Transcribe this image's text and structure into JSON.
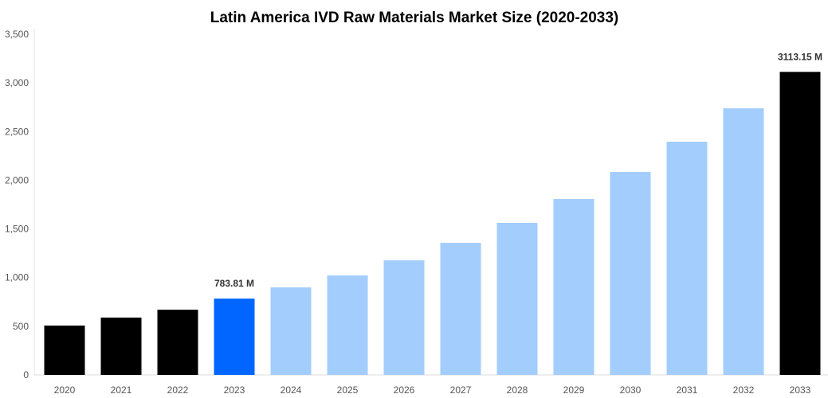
{
  "chart_data": {
    "type": "bar",
    "title": "Latin America IVD Raw Materials Market Size (2020-2033)",
    "xlabel": "",
    "ylabel": "",
    "ylim": [
      0,
      3500
    ],
    "yticks": [
      "0",
      "500",
      "1,000",
      "1,500",
      "2,000",
      "2,500",
      "3,000",
      "3,500"
    ],
    "ytick_values": [
      0,
      500,
      1000,
      1500,
      2000,
      2500,
      3000,
      3500
    ],
    "grid": false,
    "categories": [
      "2020",
      "2021",
      "2022",
      "2023",
      "2024",
      "2025",
      "2026",
      "2027",
      "2028",
      "2029",
      "2030",
      "2031",
      "2032",
      "2033"
    ],
    "values": [
      507,
      589,
      670,
      783.81,
      899,
      1022,
      1177,
      1357,
      1562,
      1807,
      2085,
      2396,
      2739,
      3113.15
    ],
    "bar_colors": [
      "#000000",
      "#000000",
      "#000000",
      "#0066ff",
      "#a3cdfd",
      "#a3cdfd",
      "#a3cdfd",
      "#a3cdfd",
      "#a3cdfd",
      "#a3cdfd",
      "#a3cdfd",
      "#a3cdfd",
      "#a3cdfd",
      "#000000"
    ],
    "data_labels": [
      {
        "category": "2023",
        "text": "783.81 M"
      },
      {
        "category": "2033",
        "text": "3113.15 M"
      }
    ]
  }
}
